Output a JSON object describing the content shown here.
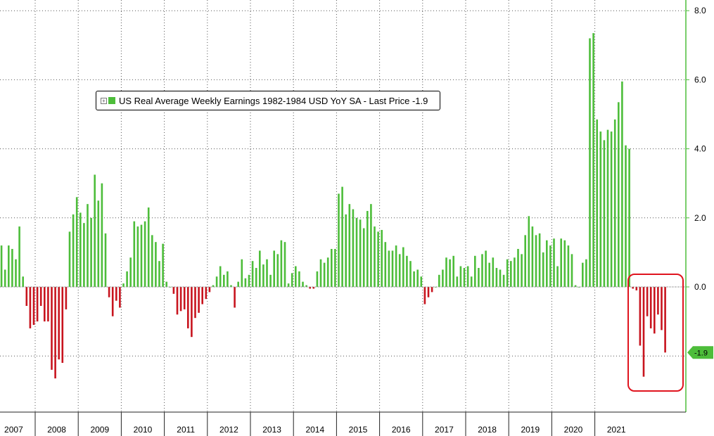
{
  "legend": {
    "label": "US Real Average Weekly Earnings 1982-1984 USD YoY SA - Last Price -1.9"
  },
  "colors": {
    "positive": "#4dbd3a",
    "negative": "#c8141e",
    "axis": "#4dbd3a",
    "grid": "#555555",
    "highlight": "#e0141e",
    "last_price_tag": "#4dbd3a"
  },
  "chart_data": {
    "type": "bar",
    "title": "",
    "xlabel": "",
    "ylabel": "",
    "ylim": [
      -3.6,
      8.2
    ],
    "yticks": [
      "8.0",
      "6.0",
      "4.0",
      "2.0",
      "0.0"
    ],
    "last_price": "-1.9",
    "last_value": -1.9,
    "years": [
      "2007",
      "2008",
      "2009",
      "2010",
      "2011",
      "2012",
      "2013",
      "2014",
      "2015",
      "2016",
      "2017",
      "2018",
      "2019",
      "2020",
      "2021"
    ],
    "x_start": "2007-01",
    "frequency": "monthly",
    "series": [
      {
        "values": [
          1.2,
          0.5,
          1.2,
          1.1,
          0.8,
          1.75,
          0.3,
          -0.55,
          -1.2,
          -1.1,
          -1.0,
          -0.55,
          -1.0,
          -1.0,
          -2.4,
          -2.65,
          -2.1,
          -2.2,
          -0.65,
          1.6,
          2.1,
          2.6,
          2.15,
          1.85,
          2.4,
          2.0,
          3.25,
          2.5,
          3.0,
          1.55,
          -0.3,
          -0.85,
          -0.4,
          -0.6,
          0.1,
          0.45,
          0.85,
          1.9,
          1.75,
          1.8,
          1.9,
          2.3,
          1.5,
          1.3,
          0.75,
          1.25,
          0.15,
          0.0,
          -0.2,
          -0.8,
          -0.7,
          -0.65,
          -1.2,
          -1.45,
          -0.9,
          -0.75,
          -0.5,
          -0.35,
          -0.15,
          0.05,
          0.3,
          0.6,
          0.35,
          0.45,
          0.05,
          -0.6,
          0.15,
          0.8,
          0.25,
          0.35,
          0.75,
          0.55,
          1.05,
          0.65,
          0.8,
          0.35,
          1.05,
          0.95,
          1.35,
          1.3,
          0.1,
          0.4,
          0.6,
          0.45,
          0.15,
          0.05,
          -0.05,
          -0.05,
          0.45,
          0.8,
          0.7,
          0.85,
          1.1,
          1.1,
          2.7,
          2.9,
          2.1,
          2.4,
          2.25,
          2.0,
          1.95,
          1.7,
          2.2,
          2.4,
          1.75,
          1.6,
          1.65,
          1.3,
          1.05,
          1.05,
          1.2,
          0.95,
          1.15,
          0.9,
          0.75,
          0.45,
          0.5,
          0.3,
          -0.5,
          -0.3,
          -0.15,
          0.0,
          0.35,
          0.5,
          0.85,
          0.8,
          0.9,
          0.3,
          0.6,
          0.55,
          0.6,
          0.3,
          0.9,
          0.55,
          0.95,
          1.05,
          0.7,
          0.85,
          0.55,
          0.5,
          0.35,
          0.8,
          0.75,
          0.85,
          1.1,
          0.95,
          1.5,
          2.05,
          1.75,
          1.5,
          1.55,
          1.0,
          1.35,
          1.2,
          1.4,
          0.6,
          1.4,
          1.35,
          1.2,
          0.95,
          0.05,
          0.0,
          0.7,
          0.8,
          7.2,
          7.35,
          4.85,
          4.5,
          4.25,
          4.55,
          4.5,
          4.85,
          5.35,
          5.95,
          4.1,
          4.0,
          -0.05,
          -0.1,
          -1.7,
          -2.6,
          -0.85,
          -1.2,
          -1.35,
          -0.8,
          -1.25,
          -1.9
        ]
      }
    ]
  }
}
